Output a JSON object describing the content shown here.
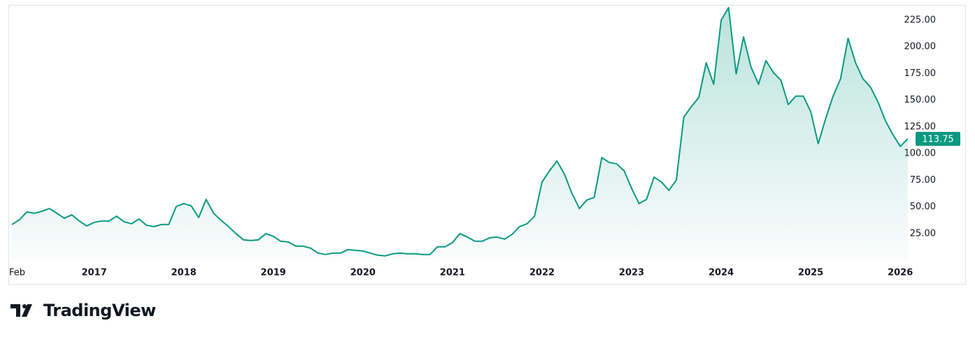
{
  "chart_data": {
    "type": "area",
    "brand": "TradingView",
    "x": [
      2016.083,
      2016.167,
      2016.25,
      2016.333,
      2016.417,
      2016.5,
      2016.583,
      2016.667,
      2016.75,
      2016.833,
      2016.917,
      2017,
      2017.083,
      2017.167,
      2017.25,
      2017.333,
      2017.417,
      2017.5,
      2017.583,
      2017.667,
      2017.75,
      2017.833,
      2017.917,
      2018,
      2018.083,
      2018.167,
      2018.25,
      2018.333,
      2018.417,
      2018.5,
      2018.583,
      2018.667,
      2018.75,
      2018.833,
      2018.917,
      2019,
      2019.083,
      2019.167,
      2019.25,
      2019.333,
      2019.417,
      2019.5,
      2019.583,
      2019.667,
      2019.75,
      2019.833,
      2019.917,
      2020,
      2020.083,
      2020.167,
      2020.25,
      2020.333,
      2020.417,
      2020.5,
      2020.583,
      2020.667,
      2020.75,
      2020.833,
      2020.917,
      2021,
      2021.083,
      2021.167,
      2021.25,
      2021.333,
      2021.417,
      2021.5,
      2021.583,
      2021.667,
      2021.75,
      2021.833,
      2021.917,
      2022,
      2022.083,
      2022.167,
      2022.25,
      2022.333,
      2022.417,
      2022.5,
      2022.583,
      2022.667,
      2022.75,
      2022.833,
      2022.917,
      2023,
      2023.083,
      2023.167,
      2023.25,
      2023.333,
      2023.417,
      2023.5,
      2023.583,
      2023.667,
      2023.75,
      2023.833,
      2023.917,
      2024,
      2024.083,
      2024.167,
      2024.25,
      2024.333,
      2024.417,
      2024.5,
      2024.583,
      2024.667,
      2024.75,
      2024.833,
      2024.917,
      2025,
      2025.083,
      2025.167,
      2025.25,
      2025.333,
      2025.417,
      2025.5,
      2025.583,
      2025.667,
      2025.75,
      2025.833,
      2025.917,
      2026,
      2026.083
    ],
    "series": [
      {
        "color": "#089981",
        "values": [
          33.5,
          38.1,
          45.3,
          44.0,
          45.9,
          48.5,
          44.0,
          39.4,
          42.6,
          36.8,
          32.2,
          35.5,
          36.8,
          36.8,
          41.3,
          36.1,
          34.2,
          38.7,
          32.8,
          31.5,
          33.5,
          33.5,
          50.5,
          53.1,
          51.1,
          40.0,
          57.0,
          44.0,
          37.4,
          31.5,
          25.0,
          19.1,
          18.5,
          19.1,
          25.0,
          22.4,
          17.8,
          17.2,
          13.2,
          13.2,
          11.3,
          6.7,
          5.4,
          6.7,
          6.7,
          10.0,
          9.3,
          8.7,
          6.7,
          4.7,
          4.1,
          6.0,
          6.7,
          6.0,
          6.0,
          5.4,
          5.4,
          12.6,
          12.6,
          16.5,
          25.0,
          21.7,
          17.8,
          17.8,
          21.1,
          21.7,
          19.8,
          24.3,
          31.5,
          34.2,
          41.3,
          73.4,
          83.8,
          93.0,
          80.6,
          62.9,
          48.5,
          56.4,
          59.0,
          96.2,
          91.7,
          90.4,
          83.8,
          67.5,
          53.1,
          57.0,
          77.9,
          73.4,
          65.5,
          75.3,
          134.2,
          144.0,
          152.5,
          185.1,
          164.9,
          225.0,
          236.8,
          174.7,
          209.3,
          181.2,
          164.9,
          187.1,
          176.0,
          168.8,
          145.9,
          153.8,
          153.8,
          139.4,
          109.3,
          132.8,
          153.8,
          170.1,
          208.0,
          185.1,
          170.1,
          162.3,
          148.5,
          130.9,
          117.8,
          106.7,
          113.75
        ]
      }
    ],
    "xlim": [
      2016.05,
      2026.1
    ],
    "xticks": [
      {
        "value": 2016.083,
        "label": "Feb"
      },
      2017,
      2018,
      2019,
      2020,
      2021,
      2022,
      2023,
      2024,
      2025,
      2026
    ],
    "ylim": [
      0,
      240
    ],
    "yticks": [
      {
        "value": 25,
        "label": "25.00"
      },
      {
        "value": 50,
        "label": "50.00"
      },
      {
        "value": 75,
        "label": "75.00"
      },
      {
        "value": 100,
        "label": "100.00"
      },
      {
        "value": 125,
        "label": "125.00"
      },
      {
        "value": 150,
        "label": "150.00"
      },
      {
        "value": 175,
        "label": "175.00"
      },
      {
        "value": 200,
        "label": "200.00"
      },
      {
        "value": 225,
        "label": "225.00"
      }
    ],
    "grid": false
  }
}
